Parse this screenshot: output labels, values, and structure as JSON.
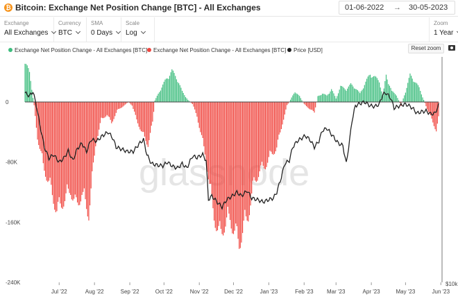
{
  "header": {
    "title": "Bitcoin: Exchange Net Position Change [BTC] - All Exchanges",
    "date_from": "01-06-2022",
    "date_separator": "→",
    "date_to": "30-05-2023"
  },
  "controls": {
    "exchange": {
      "label": "Exchange",
      "value": "All Exchanges"
    },
    "currency": {
      "label": "Currency",
      "value": "BTC"
    },
    "sma": {
      "label": "SMA",
      "value": "0 Days"
    },
    "scale": {
      "label": "Scale",
      "value": "Log"
    },
    "zoom": {
      "label": "Zoom",
      "value": "1 Year"
    }
  },
  "legend": {
    "positive": "Exchange Net Position Change - All Exchanges [BTC]",
    "negative": "Exchange Net Position Change - All Exchanges [BTC]",
    "price": "Price [USD]",
    "reset_zoom": "Reset zoom"
  },
  "colors": {
    "positive": "#3ebd7e",
    "negative": "#f0463f",
    "price": "#222222"
  },
  "watermark": "glassnode",
  "chart_data": {
    "type": "bar",
    "y_ticks": [
      "0",
      "-80K",
      "-160K",
      "-240K"
    ],
    "y_tick_values": [
      0,
      -80000,
      -160000,
      -240000
    ],
    "ylim": [
      -240000,
      60000
    ],
    "right_axis_label": "$10k",
    "x_ticks": [
      "Jul '22",
      "Aug '22",
      "Sep '22",
      "Oct '22",
      "Nov '22",
      "Dec '22",
      "Jan '23",
      "Feb '23",
      "Mar '23",
      "Apr '23",
      "May '23",
      "Jun '23"
    ],
    "x_tick_dates": [
      "2022-07-01",
      "2022-08-01",
      "2022-09-01",
      "2022-10-01",
      "2022-11-01",
      "2022-12-01",
      "2023-01-01",
      "2023-02-01",
      "2023-03-01",
      "2023-04-01",
      "2023-05-01",
      "2023-06-01"
    ],
    "net_position_keypoints": [
      [
        "2022-06-01",
        62000
      ],
      [
        "2022-06-05",
        40000
      ],
      [
        "2022-06-09",
        -5000
      ],
      [
        "2022-06-12",
        -50000
      ],
      [
        "2022-06-17",
        -90000
      ],
      [
        "2022-06-23",
        -120000
      ],
      [
        "2022-06-29",
        -155000
      ],
      [
        "2022-07-05",
        -140000
      ],
      [
        "2022-07-11",
        -125000
      ],
      [
        "2022-07-16",
        -148000
      ],
      [
        "2022-07-21",
        -130000
      ],
      [
        "2022-07-27",
        -158000
      ],
      [
        "2022-08-02",
        -60000
      ],
      [
        "2022-08-07",
        -25000
      ],
      [
        "2022-08-12",
        -18000
      ],
      [
        "2022-08-16",
        -30000
      ],
      [
        "2022-08-21",
        -12000
      ],
      [
        "2022-08-27",
        -5000
      ],
      [
        "2022-08-31",
        0
      ],
      [
        "2022-09-03",
        -5000
      ],
      [
        "2022-09-07",
        -25000
      ],
      [
        "2022-09-12",
        -45000
      ],
      [
        "2022-09-17",
        -60000
      ],
      [
        "2022-09-21",
        -30000
      ],
      [
        "2022-09-23",
        2000
      ],
      [
        "2022-09-27",
        15000
      ],
      [
        "2022-10-02",
        30000
      ],
      [
        "2022-10-08",
        44000
      ],
      [
        "2022-10-12",
        35000
      ],
      [
        "2022-10-17",
        15000
      ],
      [
        "2022-10-22",
        3000
      ],
      [
        "2022-10-26",
        -3000
      ],
      [
        "2022-10-30",
        -20000
      ],
      [
        "2022-11-03",
        -50000
      ],
      [
        "2022-11-07",
        -80000
      ],
      [
        "2022-11-10",
        -120000
      ],
      [
        "2022-11-14",
        -160000
      ],
      [
        "2022-11-18",
        -190000
      ],
      [
        "2022-11-23",
        -175000
      ],
      [
        "2022-11-28",
        -165000
      ],
      [
        "2022-12-02",
        -185000
      ],
      [
        "2022-12-06",
        -200000
      ],
      [
        "2022-12-10",
        -178000
      ],
      [
        "2022-12-14",
        -160000
      ],
      [
        "2022-12-19",
        -115000
      ],
      [
        "2022-12-24",
        -98000
      ],
      [
        "2022-12-29",
        -90000
      ],
      [
        "2023-01-03",
        -75000
      ],
      [
        "2023-01-08",
        -65000
      ],
      [
        "2023-01-13",
        -30000
      ],
      [
        "2023-01-17",
        -5000
      ],
      [
        "2023-01-20",
        3000
      ],
      [
        "2023-01-24",
        15000
      ],
      [
        "2023-01-28",
        8000
      ],
      [
        "2023-02-01",
        -3000
      ],
      [
        "2023-02-06",
        -10000
      ],
      [
        "2023-02-10",
        -15000
      ],
      [
        "2023-02-13",
        8000
      ],
      [
        "2023-02-17",
        12000
      ],
      [
        "2023-02-21",
        9000
      ],
      [
        "2023-02-25",
        18000
      ],
      [
        "2023-03-01",
        5000
      ],
      [
        "2023-03-05",
        22000
      ],
      [
        "2023-03-10",
        18000
      ],
      [
        "2023-03-14",
        25000
      ],
      [
        "2023-03-18",
        20000
      ],
      [
        "2023-03-22",
        12000
      ],
      [
        "2023-03-27",
        28000
      ],
      [
        "2023-03-31",
        40000
      ],
      [
        "2023-04-04",
        35000
      ],
      [
        "2023-04-08",
        30000
      ],
      [
        "2023-04-11",
        8000
      ],
      [
        "2023-04-14",
        38000
      ],
      [
        "2023-04-19",
        15000
      ],
      [
        "2023-04-23",
        10000
      ],
      [
        "2023-04-27",
        -5000
      ],
      [
        "2023-05-01",
        15000
      ],
      [
        "2023-05-05",
        38000
      ],
      [
        "2023-05-09",
        30000
      ],
      [
        "2023-05-13",
        20000
      ],
      [
        "2023-05-17",
        3000
      ],
      [
        "2023-05-20",
        -10000
      ],
      [
        "2023-05-24",
        -25000
      ],
      [
        "2023-05-28",
        -40000
      ],
      [
        "2023-05-30",
        -22000
      ]
    ],
    "price_keypoints": [
      [
        "2022-06-01",
        12000
      ],
      [
        "2022-06-05",
        8000
      ],
      [
        "2022-06-08",
        14000
      ],
      [
        "2022-06-11",
        -5000
      ],
      [
        "2022-06-14",
        -30000
      ],
      [
        "2022-06-18",
        -60000
      ],
      [
        "2022-06-22",
        -75000
      ],
      [
        "2022-06-26",
        -70000
      ],
      [
        "2022-07-01",
        -80000
      ],
      [
        "2022-07-05",
        -75000
      ],
      [
        "2022-07-09",
        -65000
      ],
      [
        "2022-07-13",
        -78000
      ],
      [
        "2022-07-17",
        -62000
      ],
      [
        "2022-07-21",
        -55000
      ],
      [
        "2022-07-25",
        -66000
      ],
      [
        "2022-07-29",
        -50000
      ],
      [
        "2022-08-03",
        -52000
      ],
      [
        "2022-08-08",
        -45000
      ],
      [
        "2022-08-13",
        -40000
      ],
      [
        "2022-08-17",
        -48000
      ],
      [
        "2022-08-20",
        -60000
      ],
      [
        "2022-08-25",
        -63000
      ],
      [
        "2022-08-30",
        -66000
      ],
      [
        "2022-09-04",
        -66000
      ],
      [
        "2022-09-09",
        -56000
      ],
      [
        "2022-09-13",
        -50000
      ],
      [
        "2022-09-16",
        -70000
      ],
      [
        "2022-09-20",
        -82000
      ],
      [
        "2022-09-25",
        -84000
      ],
      [
        "2022-09-30",
        -85000
      ],
      [
        "2022-10-04",
        -80000
      ],
      [
        "2022-10-09",
        -86000
      ],
      [
        "2022-10-13",
        -88000
      ],
      [
        "2022-10-17",
        -82000
      ],
      [
        "2022-10-21",
        -88000
      ],
      [
        "2022-10-26",
        -72000
      ],
      [
        "2022-10-30",
        -74000
      ],
      [
        "2022-11-04",
        -70000
      ],
      [
        "2022-11-07",
        -78000
      ],
      [
        "2022-11-09",
        -130000
      ],
      [
        "2022-11-12",
        -125000
      ],
      [
        "2022-11-16",
        -132000
      ],
      [
        "2022-11-21",
        -140000
      ],
      [
        "2022-11-25",
        -130000
      ],
      [
        "2022-11-30",
        -125000
      ],
      [
        "2022-12-04",
        -120000
      ],
      [
        "2022-12-08",
        -125000
      ],
      [
        "2022-12-13",
        -118000
      ],
      [
        "2022-12-17",
        -128000
      ],
      [
        "2022-12-22",
        -130000
      ],
      [
        "2022-12-27",
        -133000
      ],
      [
        "2023-01-01",
        -130000
      ],
      [
        "2023-01-05",
        -128000
      ],
      [
        "2023-01-08",
        -120000
      ],
      [
        "2023-01-12",
        -100000
      ],
      [
        "2023-01-15",
        -82000
      ],
      [
        "2023-01-19",
        -78000
      ],
      [
        "2023-01-22",
        -60000
      ],
      [
        "2023-01-26",
        -52000
      ],
      [
        "2023-01-30",
        -48000
      ],
      [
        "2023-02-02",
        -45000
      ],
      [
        "2023-02-06",
        -50000
      ],
      [
        "2023-02-10",
        -60000
      ],
      [
        "2023-02-14",
        -52000
      ],
      [
        "2023-02-17",
        -38000
      ],
      [
        "2023-02-21",
        -35000
      ],
      [
        "2023-02-26",
        -45000
      ],
      [
        "2023-03-03",
        -55000
      ],
      [
        "2023-03-07",
        -58000
      ],
      [
        "2023-03-10",
        -82000
      ],
      [
        "2023-03-13",
        -50000
      ],
      [
        "2023-03-15",
        -25000
      ],
      [
        "2023-03-18",
        -5000
      ],
      [
        "2023-03-22",
        -2000
      ],
      [
        "2023-03-26",
        0
      ],
      [
        "2023-03-31",
        -5000
      ],
      [
        "2023-04-04",
        -6000
      ],
      [
        "2023-04-08",
        -3000
      ],
      [
        "2023-04-11",
        10000
      ],
      [
        "2023-04-14",
        12000
      ],
      [
        "2023-04-18",
        5000
      ],
      [
        "2023-04-21",
        -8000
      ],
      [
        "2023-04-26",
        -5000
      ],
      [
        "2023-04-30",
        -3000
      ],
      [
        "2023-05-03",
        -4000
      ],
      [
        "2023-05-07",
        -8000
      ],
      [
        "2023-05-11",
        -15000
      ],
      [
        "2023-05-15",
        -13000
      ],
      [
        "2023-05-19",
        -12000
      ],
      [
        "2023-05-23",
        -16000
      ],
      [
        "2023-05-27",
        -15000
      ],
      [
        "2023-05-30",
        -4000
      ]
    ]
  }
}
